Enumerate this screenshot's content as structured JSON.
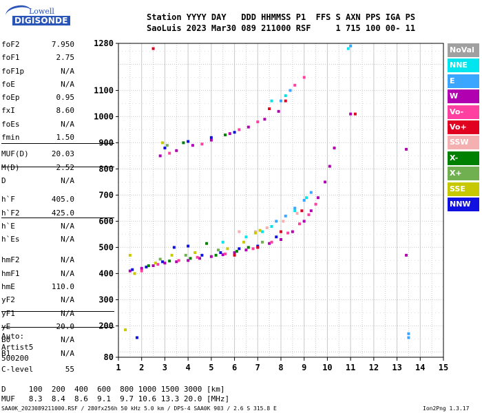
{
  "logo": {
    "line1": "Lowell",
    "line2": "DIGISONDE"
  },
  "header": {
    "row1": "Station YYYY DAY   DDD HHMMSS P1  FFS S AXN PPS IGA PS",
    "row2": "SaoLuis 2023 Mar30 089 211000 RSF     1 715 100 00- 11"
  },
  "params": [
    {
      "k": "foF2",
      "v": "7.950"
    },
    {
      "k": "foF1",
      "v": "2.75"
    },
    {
      "k": "foF1p",
      "v": "N/A"
    },
    {
      "k": "foE",
      "v": "N/A"
    },
    {
      "k": "foEp",
      "v": "0.95"
    },
    {
      "k": "fxI",
      "v": "8.60"
    },
    {
      "k": "foEs",
      "v": "N/A"
    },
    {
      "k": "fmin",
      "v": "1.50"
    },
    {
      "k": "MUF(D)",
      "v": "20.03"
    },
    {
      "k": "M(D)",
      "v": "2.52"
    },
    {
      "k": "D",
      "v": "N/A"
    },
    {
      "k": "h`F",
      "v": "405.0"
    },
    {
      "k": "h`F2",
      "v": "425.0"
    },
    {
      "k": "h`E",
      "v": "N/A"
    },
    {
      "k": "h`Es",
      "v": "N/A"
    },
    {
      "k": "hmF2",
      "v": "N/A"
    },
    {
      "k": "hmF1",
      "v": "N/A"
    },
    {
      "k": "hmE",
      "v": "110.0"
    },
    {
      "k": "yF2",
      "v": "N/A"
    },
    {
      "k": "yF1",
      "v": "N/A"
    },
    {
      "k": "yE",
      "v": "20.0"
    },
    {
      "k": "B0",
      "v": "N/A"
    },
    {
      "k": "B1",
      "v": "N/A"
    },
    {
      "k": "C-level",
      "v": "55"
    }
  ],
  "auto": {
    "label": "Auto:",
    "artist": "Artist5",
    "code": "500200"
  },
  "footer": {
    "d_row": "D     100  200  400  600  800 1000 1500 3000 [km]",
    "muf_row": "MUF   8.3  8.4  8.6  9.1  9.7 10.6 13.3 20.0 [MHz]",
    "info": "SAA0K_2023089211000.RSF / 280fx256h 50 kHz 5.0 km / DPS-4 SAA0K 903 / 2.6 S 315.8 E",
    "version": "Ion2Png 1.3.17"
  },
  "legend": [
    {
      "label": "NoVal",
      "color": "#a0a0a0"
    },
    {
      "label": "NNE",
      "color": "#00e5ee"
    },
    {
      "label": "E",
      "color": "#3aa6ff"
    },
    {
      "label": "W",
      "color": "#b000b0"
    },
    {
      "label": "Vo-",
      "color": "#ff40a0"
    },
    {
      "label": "Vo+",
      "color": "#e00020"
    },
    {
      "label": "SSW",
      "color": "#f4b0b0"
    },
    {
      "label": "X-",
      "color": "#008000"
    },
    {
      "label": "X+",
      "color": "#70b050"
    },
    {
      "label": "SSE",
      "color": "#c8c800"
    },
    {
      "label": "NNW",
      "color": "#1010e0"
    }
  ],
  "chart_data": {
    "type": "scatter",
    "xlabel": "",
    "ylabel": "",
    "xlim": [
      1,
      15
    ],
    "ylim": [
      80,
      1280
    ],
    "x_ticks": [
      "1",
      "2",
      "3",
      "4",
      "5",
      "6",
      "7",
      "8",
      "9",
      "10",
      "11",
      "12",
      "13",
      "14",
      "15"
    ],
    "y_ticks": [
      {
        "v": 80,
        "t": "80"
      },
      {
        "v": 200,
        "t": "200"
      },
      {
        "v": 300,
        "t": "300"
      },
      {
        "v": 400,
        "t": "400"
      },
      {
        "v": 500,
        "t": "500"
      },
      {
        "v": 600,
        "t": "600"
      },
      {
        "v": 700,
        "t": "700"
      },
      {
        "v": 800,
        "t": "800"
      },
      {
        "v": 900,
        "t": "900"
      },
      {
        "v": 1000,
        "t": "1000"
      },
      {
        "v": 1100,
        "t": "1100"
      },
      {
        "v": 1280,
        "t": "1280"
      }
    ],
    "grid": true,
    "series": [
      {
        "color": "#b000b0",
        "points": [
          [
            1.5,
            410
          ],
          [
            2,
            420
          ],
          [
            2.5,
            430
          ],
          [
            3,
            440
          ],
          [
            3.5,
            445
          ],
          [
            4,
            450
          ],
          [
            4.5,
            458
          ],
          [
            5,
            465
          ],
          [
            5.5,
            472
          ],
          [
            6,
            480
          ],
          [
            6.5,
            490
          ],
          [
            7,
            500
          ],
          [
            7.5,
            515
          ],
          [
            8,
            530
          ],
          [
            8.5,
            560
          ],
          [
            9,
            600
          ],
          [
            9.3,
            640
          ],
          [
            9.6,
            690
          ],
          [
            9.9,
            750
          ],
          [
            10.1,
            810
          ],
          [
            10.3,
            880
          ],
          [
            2.8,
            850
          ],
          [
            3.5,
            870
          ],
          [
            4.2,
            890
          ],
          [
            5,
            910
          ],
          [
            5.8,
            935
          ],
          [
            6.6,
            960
          ],
          [
            7.3,
            990
          ],
          [
            7.9,
            1020
          ],
          [
            11,
            1010
          ],
          [
            13.4,
            875
          ],
          [
            13.4,
            470
          ]
        ]
      },
      {
        "color": "#1010e0",
        "points": [
          [
            1.6,
            415
          ],
          [
            2.2,
            425
          ],
          [
            2.9,
            445
          ],
          [
            3.4,
            500
          ],
          [
            4,
            505
          ],
          [
            4.6,
            470
          ],
          [
            5.4,
            480
          ],
          [
            6.2,
            495
          ],
          [
            7,
            505
          ],
          [
            7.8,
            540
          ],
          [
            3,
            880
          ],
          [
            4,
            905
          ],
          [
            5,
            920
          ],
          [
            6,
            940
          ],
          [
            1.8,
            155
          ]
        ]
      },
      {
        "color": "#3aa6ff",
        "points": [
          [
            7.8,
            600
          ],
          [
            8.2,
            620
          ],
          [
            8.6,
            650
          ],
          [
            9,
            680
          ],
          [
            9.3,
            710
          ],
          [
            8.0,
            1060
          ],
          [
            8.4,
            1100
          ],
          [
            11,
            1270
          ],
          [
            13.5,
            170
          ],
          [
            13.5,
            155
          ]
        ]
      },
      {
        "color": "#00e5ee",
        "points": [
          [
            5.5,
            520
          ],
          [
            6.5,
            540
          ],
          [
            7.2,
            560
          ],
          [
            7.6,
            580
          ],
          [
            8.6,
            640
          ],
          [
            9.1,
            690
          ],
          [
            7.6,
            1060
          ],
          [
            8.2,
            1080
          ],
          [
            10.9,
            1260
          ]
        ]
      },
      {
        "color": "#ff40a0",
        "points": [
          [
            2,
            410
          ],
          [
            2.7,
            435
          ],
          [
            3.6,
            450
          ],
          [
            4.4,
            462
          ],
          [
            5.6,
            475
          ],
          [
            6.8,
            495
          ],
          [
            7.6,
            520
          ],
          [
            8.3,
            555
          ],
          [
            8.8,
            590
          ],
          [
            9.2,
            625
          ],
          [
            9.5,
            665
          ],
          [
            3.2,
            860
          ],
          [
            4.6,
            895
          ],
          [
            6.2,
            950
          ],
          [
            7,
            980
          ],
          [
            8.6,
            1120
          ],
          [
            9,
            1150
          ]
        ]
      },
      {
        "color": "#e00020",
        "points": [
          [
            6,
            470
          ],
          [
            7,
            500
          ],
          [
            8,
            560
          ],
          [
            8.9,
            640
          ],
          [
            7.5,
            1030
          ],
          [
            8.2,
            1060
          ],
          [
            2.5,
            1260
          ],
          [
            11.2,
            1010
          ]
        ]
      },
      {
        "color": "#f4b0b0",
        "points": [
          [
            6.2,
            560
          ],
          [
            6.9,
            560
          ],
          [
            7.4,
            575
          ],
          [
            8.1,
            600
          ],
          [
            8.7,
            630
          ]
        ]
      },
      {
        "color": "#008000",
        "points": [
          [
            2.3,
            430
          ],
          [
            3.2,
            448
          ],
          [
            4.1,
            458
          ],
          [
            5.2,
            470
          ],
          [
            6.1,
            485
          ],
          [
            6.6,
            500
          ],
          [
            4.8,
            515
          ],
          [
            3.8,
            900
          ],
          [
            5.6,
            930
          ]
        ]
      },
      {
        "color": "#70b050",
        "points": [
          [
            2.8,
            455
          ],
          [
            3.9,
            470
          ],
          [
            5.3,
            490
          ],
          [
            7.2,
            520
          ],
          [
            3.1,
            890
          ]
        ]
      },
      {
        "color": "#c8c800",
        "points": [
          [
            1.7,
            400
          ],
          [
            2.6,
            440
          ],
          [
            3.3,
            470
          ],
          [
            4.3,
            480
          ],
          [
            5.7,
            495
          ],
          [
            6.4,
            520
          ],
          [
            6.9,
            555
          ],
          [
            7.1,
            565
          ],
          [
            2.9,
            900
          ],
          [
            1.5,
            470
          ],
          [
            1.3,
            185
          ]
        ]
      }
    ]
  }
}
